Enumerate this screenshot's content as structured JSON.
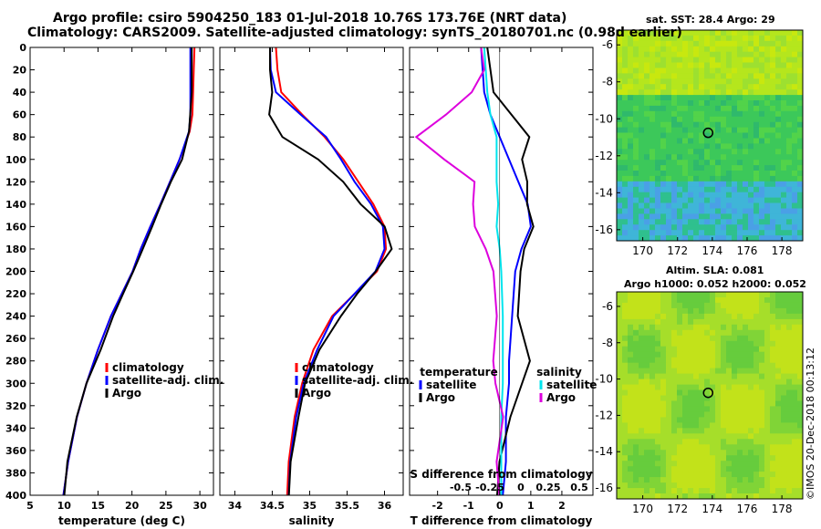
{
  "header": {
    "title_line1": "Argo profile: csiro 5904250_183 01-Jul-2018 10.76S 173.76E (NRT data)",
    "title_line2": "Climatology: CARS2009. Satellite-adjusted climatology: synTS_20180701.nc (0.98d earlier)"
  },
  "colors": {
    "climatology": "#ff0000",
    "satellite": "#0000ff",
    "argo": "#000000",
    "t_diff_satellite": "#0000ff",
    "s_diff_satellite": "#00e5ee",
    "s_diff_argo": "#dd00dd"
  },
  "maps": {
    "sst_title": "sat. SST: 28.4 Argo: 29",
    "sla_title_line1": "Altim. SLA: 0.081",
    "sla_title_line2": "Argo h1000: 0.052 h2000: 0.052",
    "marker_lon": 173.76,
    "marker_lat": -10.76,
    "lon_ticks": [
      "170",
      "172",
      "174",
      "176",
      "178"
    ],
    "lat_ticks": [
      "-6",
      "-8",
      "-10",
      "-12",
      "-14",
      "-16"
    ],
    "xlim": [
      168.5,
      179.2
    ],
    "ylim": [
      -16.6,
      -5.2
    ]
  },
  "credit": "©IMOS 20-Dec-2018 00:13:12",
  "chart_data": [
    {
      "type": "line",
      "name": "temperature-profile",
      "xlabel": "temperature (deg C)",
      "ylabel": "",
      "xlim": [
        5,
        32
      ],
      "ylim": [
        400,
        0
      ],
      "x_ticks": [
        5,
        10,
        15,
        20,
        25,
        30
      ],
      "y_ticks": [
        0,
        20,
        40,
        60,
        80,
        100,
        120,
        140,
        160,
        180,
        200,
        220,
        240,
        260,
        280,
        300,
        320,
        340,
        360,
        380,
        400
      ],
      "legend": [
        "climatology",
        "satellite-adj. clim.",
        "Argo"
      ],
      "series": [
        {
          "name": "climatology",
          "color": "#ff0000",
          "x": [
            29.2,
            29.1,
            29.0,
            28.9,
            28.5,
            27.0,
            25.6,
            24.2,
            22.7,
            21.3,
            20.1,
            18.5,
            16.9,
            15.0,
            13.3,
            11.9,
            10.6,
            9.9
          ],
          "y": [
            0,
            20,
            40,
            60,
            75,
            100,
            120,
            140,
            160,
            180,
            200,
            220,
            240,
            270,
            300,
            330,
            370,
            400
          ]
        },
        {
          "name": "satellite-adj. clim.",
          "color": "#0000ff",
          "x": [
            28.6,
            28.6,
            28.6,
            28.6,
            28.4,
            27.0,
            25.6,
            24.2,
            22.7,
            21.3,
            20.1,
            18.5,
            16.9,
            15.0,
            13.3,
            11.9,
            10.6,
            9.9
          ],
          "y": [
            0,
            20,
            40,
            60,
            75,
            100,
            120,
            140,
            160,
            180,
            200,
            220,
            240,
            270,
            300,
            330,
            370,
            400
          ]
        },
        {
          "name": "Argo",
          "color": "#000000",
          "x": [
            28.8,
            28.8,
            28.8,
            28.7,
            28.5,
            27.4,
            25.8,
            24.3,
            22.9,
            21.6,
            20.3,
            18.8,
            17.1,
            15.3,
            13.4,
            11.8,
            10.6,
            10.0
          ],
          "y": [
            0,
            20,
            40,
            60,
            75,
            100,
            120,
            140,
            160,
            180,
            200,
            220,
            240,
            270,
            300,
            330,
            370,
            400
          ]
        }
      ]
    },
    {
      "type": "line",
      "name": "salinity-profile",
      "xlabel": "salinity",
      "ylabel": "",
      "xlim": [
        33.8,
        36.25
      ],
      "ylim": [
        400,
        0
      ],
      "x_ticks": [
        34,
        34.5,
        35,
        35.5,
        36
      ],
      "legend": [
        "climatology",
        "satellite-adj. clim.",
        "Argo"
      ],
      "series": [
        {
          "name": "climatology",
          "color": "#ff0000",
          "x": [
            34.55,
            34.57,
            34.62,
            34.9,
            35.2,
            35.45,
            35.65,
            35.85,
            36.0,
            36.02,
            35.9,
            35.6,
            35.3,
            35.05,
            34.9,
            34.8,
            34.72,
            34.7
          ],
          "y": [
            0,
            20,
            40,
            60,
            80,
            100,
            120,
            140,
            160,
            180,
            200,
            220,
            240,
            270,
            300,
            330,
            370,
            400
          ]
        },
        {
          "name": "satellite-adj. clim.",
          "color": "#0000ff",
          "x": [
            34.47,
            34.48,
            34.55,
            34.88,
            35.22,
            35.42,
            35.6,
            35.82,
            35.98,
            36.0,
            35.88,
            35.6,
            35.32,
            35.1,
            34.92,
            34.82,
            34.74,
            34.72
          ],
          "y": [
            0,
            20,
            40,
            60,
            80,
            100,
            120,
            140,
            160,
            180,
            200,
            220,
            240,
            270,
            300,
            330,
            370,
            400
          ]
        },
        {
          "name": "Argo",
          "color": "#000000",
          "x": [
            34.47,
            34.47,
            34.5,
            34.48,
            34.65,
            35.1,
            35.45,
            35.7,
            36.0,
            36.08,
            35.9,
            35.65,
            35.4,
            35.12,
            34.95,
            34.85,
            34.76,
            34.73
          ],
          "y": [
            0,
            20,
            40,
            60,
            80,
            100,
            120,
            140,
            160,
            180,
            200,
            220,
            240,
            270,
            300,
            330,
            370,
            400
          ]
        }
      ]
    },
    {
      "type": "line",
      "name": "difference-profile",
      "xlabel": "T difference from climatology",
      "xlabel_top": "S difference from climatology",
      "xlim": [
        -2.9,
        3.0
      ],
      "ylim": [
        400,
        0
      ],
      "x_ticks": [
        -2,
        -1,
        0,
        1,
        2
      ],
      "x_ticks_top": [
        "-0.5",
        "-0.25",
        "0",
        "0.25",
        "0.5"
      ],
      "legend_temperature_title": "temperature",
      "legend_salinity_title": "salinity",
      "legend_labels": [
        "satellite",
        "Argo",
        "satellite",
        "Argo"
      ],
      "series": [
        {
          "name": "T satellite",
          "color": "#0000ff",
          "x": [
            -0.6,
            -0.55,
            -0.5,
            -0.3,
            0.0,
            0.3,
            0.6,
            0.9,
            1.0,
            0.7,
            0.5,
            0.4,
            0.3,
            0.3,
            0.2,
            0.2,
            0.1
          ],
          "y": [
            0,
            20,
            40,
            60,
            80,
            100,
            120,
            140,
            160,
            180,
            200,
            240,
            280,
            300,
            330,
            370,
            400
          ]
        },
        {
          "name": "T Argo",
          "color": "#000000",
          "x": [
            -0.4,
            -0.3,
            -0.2,
            0.5,
            1.0,
            0.6,
            0.9,
            0.8,
            1.0,
            0.9,
            0.7,
            0.6,
            1.0,
            0.6,
            0.3,
            0.0,
            -0.2
          ],
          "y": [
            0,
            20,
            40,
            60,
            80,
            100,
            120,
            140,
            160,
            180,
            200,
            240,
            280,
            300,
            330,
            370,
            400
          ]
        },
        {
          "name": "S satellite",
          "color": "#00e5ee",
          "x": [
            -0.5,
            -0.45,
            -0.4,
            -0.3,
            -0.1,
            -0.1,
            -0.1,
            -0.05,
            -0.1,
            0.0,
            0.05,
            0.1,
            0.1,
            0.1,
            0.05,
            0.05,
            0.05
          ],
          "y": [
            0,
            20,
            40,
            60,
            80,
            100,
            120,
            140,
            160,
            180,
            200,
            240,
            280,
            300,
            330,
            370,
            400
          ]
        },
        {
          "name": "S Argo",
          "color": "#dd00dd",
          "x": [
            -0.6,
            -0.5,
            -0.9,
            -1.6,
            -2.6,
            -1.8,
            -0.9,
            -0.8,
            -0.9,
            -0.5,
            -0.3,
            -0.2,
            -0.2,
            -0.1,
            0.0,
            0.0,
            0.0
          ],
          "y": [
            0,
            20,
            40,
            60,
            80,
            100,
            120,
            140,
            160,
            180,
            200,
            240,
            280,
            300,
            330,
            370,
            400
          ]
        }
      ]
    }
  ]
}
